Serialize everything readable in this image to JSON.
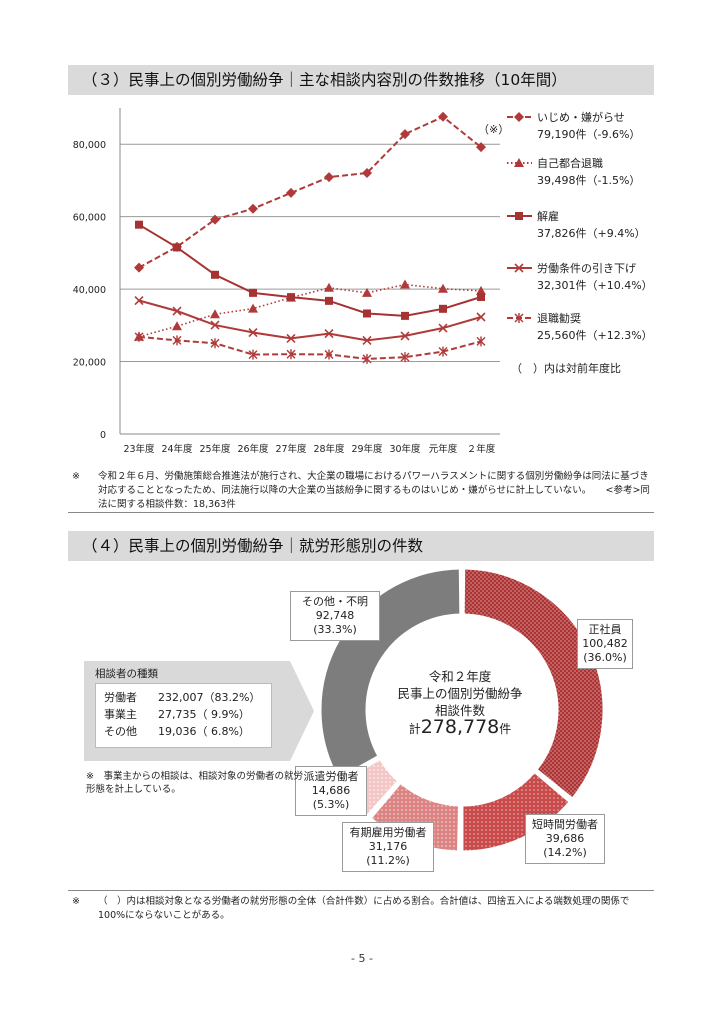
{
  "section3": {
    "title": "（３）民事上の個別労働紛争｜主な相談内容別の件数推移（10年間）",
    "note_mark": "（※）",
    "footnote_mark": "※",
    "footnote": "令和２年６月、労働施策総合推進法が施行され、大企業の職場におけるパワーハラスメントに関する個別労働紛争は同法に基づき対応することとなったため、同法施行以降の大企業の当該紛争に関するものはいじめ・嫌がらせに計上していない。　　<参考>同法に関する相談件数：18,363件"
  },
  "chart_data": {
    "type": "line",
    "categories": [
      "23年度",
      "24年度",
      "25年度",
      "26年度",
      "27年度",
      "28年度",
      "29年度",
      "30年度",
      "元年度",
      "２年度"
    ],
    "ylim": [
      0,
      90000
    ],
    "yticks": [
      "0",
      "20,000",
      "40,000",
      "60,000",
      "80,000"
    ],
    "grid": true,
    "legend_position": "right",
    "series": [
      {
        "name": "いじめ・嫌がらせ",
        "detail": "79,190件（-9.6%）",
        "color": "#b03a3a",
        "dash": "dashed",
        "marker": "diamond",
        "values": [
          45939,
          51670,
          59197,
          62191,
          66566,
          70917,
          72067,
          82797,
          87570,
          79190
        ]
      },
      {
        "name": "自己都合退職",
        "detail": "39,498件（-1.5%）",
        "color": "#b03a3a",
        "dash": "dotted",
        "marker": "triangle",
        "values": [
          26850,
          29763,
          33049,
          34626,
          37648,
          40364,
          38954,
          41258,
          40115,
          39498
        ]
      },
      {
        "name": "解雇",
        "detail": "37,826件（+9.4%）",
        "color": "#a63232",
        "dash": "solid",
        "marker": "square",
        "values": [
          57785,
          51515,
          43956,
          38966,
          37787,
          36760,
          33269,
          32614,
          34561,
          37826
        ]
      },
      {
        "name": "労働条件の引き下げ",
        "detail": "32,301件（+10.4%）",
        "color": "#b03a3a",
        "dash": "solid",
        "marker": "x",
        "values": [
          36849,
          33955,
          30067,
          28015,
          26392,
          27723,
          25841,
          27082,
          29254,
          32301
        ]
      },
      {
        "name": "退職勧奨",
        "detail": "25,560件（+12.3%）",
        "color": "#b03a3a",
        "dash": "dashed",
        "marker": "star",
        "values": [
          26828,
          25838,
          25041,
          21928,
          22029,
          21954,
          20736,
          21218,
          22762,
          25560
        ]
      }
    ],
    "legend_note": "（　）内は対前年度比"
  },
  "section4": {
    "title": "（４）民事上の個別労働紛争｜就労形態別の件数",
    "center": {
      "line1": "令和２年度",
      "line2": "民事上の個別労働紛争",
      "line3": "相談件数",
      "prefix": "計",
      "total": "278,778",
      "suffix": "件"
    },
    "donut": [
      {
        "name": "正社員",
        "count": "100,482",
        "pct": "(36.0%)",
        "share": 36.0,
        "color": "#b13b3b"
      },
      {
        "name": "短時間労働者",
        "count": "39,686",
        "pct": "(14.2%)",
        "share": 14.2,
        "color": "#c04848"
      },
      {
        "name": "有期雇用労働者",
        "count": "31,176",
        "pct": "(11.2%)",
        "share": 11.2,
        "color": "#e39595"
      },
      {
        "name": "派遣労働者",
        "count": "14,686",
        "pct": "(5.3%)",
        "share": 5.3,
        "color": "#f3c9c9"
      },
      {
        "name": "その他・不明",
        "count": "92,748",
        "pct": "(33.3%)",
        "share": 33.3,
        "color": "#7d7d7d"
      }
    ],
    "consultants": {
      "title": "相談者の種類",
      "rows": [
        {
          "label": "労働者",
          "value": "232,007（83.2%）"
        },
        {
          "label": "事業主",
          "value": "27,735（ 9.9%）"
        },
        {
          "label": "その他",
          "value": "19,036（ 6.8%）"
        }
      ],
      "note": "※　事業主からの相談は、相談対象の労働者の就労形態を計上している。"
    },
    "footnote_mark": "※",
    "footnote": "（　）内は相談対象となる労働者の就労形態の全体（合計件数）に占める割合。合計値は、四捨五入による端数処理の関係で100%にならないことがある。"
  },
  "page_number": "- 5 -"
}
